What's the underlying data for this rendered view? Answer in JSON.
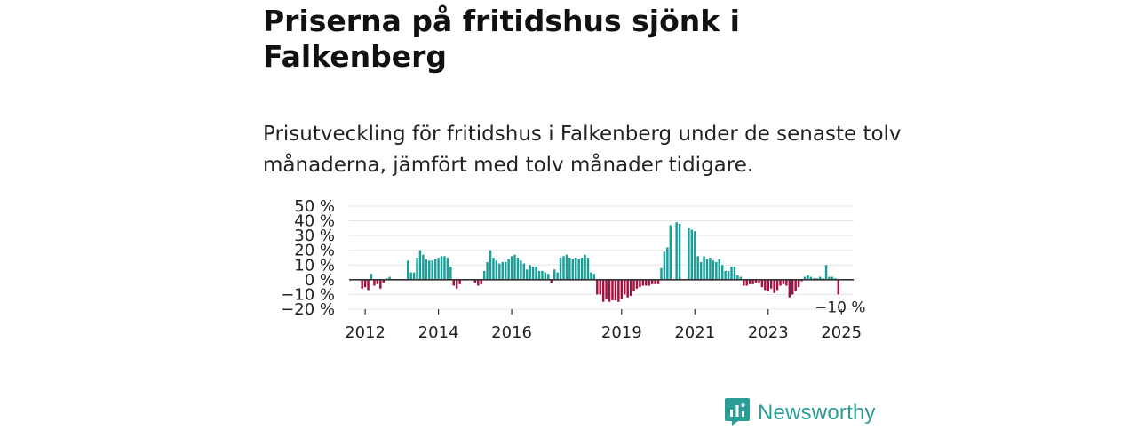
{
  "title": "Priserna på fritidshus sjönk i Falkenberg",
  "subtitle": "Prisutveckling för fritidshus i Falkenberg under de senaste tolv månaderna, jämfört med tolv månader tidigare.",
  "brand": {
    "name": "Newsworthy",
    "icon": "newsworthy-logo-icon"
  },
  "colors": {
    "positive": "#1a9e98",
    "negative": "#a50f3e",
    "grid": "#e3e3e3",
    "zero": "#333333",
    "brand": "#2a9d95"
  },
  "chart_data": {
    "type": "bar",
    "title": "",
    "xlabel": "",
    "ylabel": "",
    "ylim": [
      -20,
      50
    ],
    "y_ticks": [
      "50 %",
      "40 %",
      "30 %",
      "20 %",
      "10 %",
      "0 %",
      "−10 %",
      "−20 %"
    ],
    "y_tick_values": [
      50,
      40,
      30,
      20,
      10,
      0,
      -10,
      -20
    ],
    "x_ticks": [
      {
        "label": "2012",
        "year": 2012
      },
      {
        "label": "2014",
        "year": 2014
      },
      {
        "label": "2016",
        "year": 2016
      },
      {
        "label": "2019",
        "year": 2019
      },
      {
        "label": "2021",
        "year": 2021
      },
      {
        "label": "2023",
        "year": 2023
      },
      {
        "label": "2025",
        "year": 2025
      }
    ],
    "start": {
      "year": 2011,
      "month": 11
    },
    "series": [
      {
        "name": "Prisutveckling",
        "values": [
          null,
          -6,
          -5,
          -7,
          4,
          -4,
          -3,
          -6,
          -2,
          1,
          2,
          null,
          null,
          null,
          null,
          null,
          13,
          5,
          5,
          15,
          20,
          17,
          14,
          13,
          13,
          14,
          15,
          16,
          16,
          15,
          9,
          -4,
          -6,
          -3,
          null,
          null,
          null,
          null,
          -2,
          -4,
          -3,
          6,
          12,
          20,
          15,
          13,
          11,
          12,
          12,
          14,
          16,
          17,
          15,
          13,
          11,
          7,
          10,
          9,
          9,
          6,
          6,
          5,
          4,
          -2,
          7,
          5,
          15,
          16,
          17,
          15,
          14,
          15,
          14,
          15,
          17,
          15,
          5,
          4,
          -10,
          -10,
          -15,
          -13,
          -15,
          -14,
          -14,
          -15,
          -13,
          -10,
          -12,
          -11,
          -8,
          -6,
          -5,
          -4,
          -4,
          -4,
          -3,
          -3,
          -3,
          8,
          19,
          22,
          37,
          null,
          39,
          38,
          null,
          null,
          35,
          34,
          33,
          16,
          12,
          16,
          14,
          15,
          13,
          12,
          14,
          10,
          6,
          6,
          9,
          9,
          3,
          2,
          -4,
          -4,
          -3,
          -3,
          -2,
          -2,
          -5,
          -7,
          -8,
          -6,
          -9,
          -7,
          -4,
          -3,
          -4,
          -12,
          -10,
          -8,
          -5,
          -1,
          2,
          3,
          2,
          1,
          1,
          2,
          1,
          10,
          2,
          2,
          1,
          -10
        ]
      }
    ],
    "end_label": "−10 %"
  }
}
